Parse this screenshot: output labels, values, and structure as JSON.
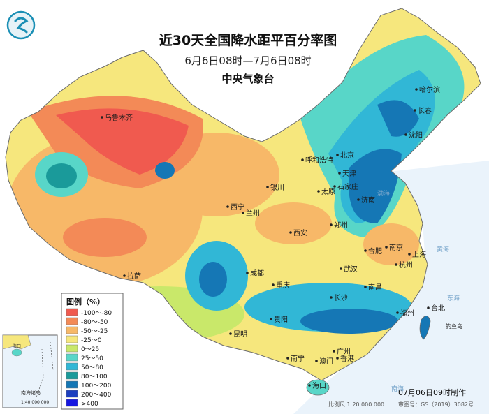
{
  "header": {
    "title": "近30天全国降水距平百分率图",
    "date_range": "6月6日08时—7月6日08时",
    "issuer": "中央气象台"
  },
  "legend": {
    "title": "图例（%）",
    "items": [
      {
        "label": "-100～-80",
        "color": "#f05a4f"
      },
      {
        "label": "-80～-50",
        "color": "#f38a57"
      },
      {
        "label": "-50～-25",
        "color": "#f7b868"
      },
      {
        "label": "-25～0",
        "color": "#f6e77d"
      },
      {
        "label": "0～25",
        "color": "#c9e86a"
      },
      {
        "label": "25～50",
        "color": "#58d6c8"
      },
      {
        "label": "50～80",
        "color": "#31b7d6"
      },
      {
        "label": "80～100",
        "color": "#1a9a9a"
      },
      {
        "label": "100～200",
        "color": "#1577b5"
      },
      {
        "label": "200～400",
        "color": "#1d3fbf"
      },
      {
        "label": ">400",
        "color": "#1717e0"
      }
    ]
  },
  "cities": [
    {
      "name": "乌鲁木齐"
    },
    {
      "name": "哈尔滨"
    },
    {
      "name": "长春"
    },
    {
      "name": "沈阳"
    },
    {
      "name": "北京"
    },
    {
      "name": "天津"
    },
    {
      "name": "呼和浩特"
    },
    {
      "name": "石家庄"
    },
    {
      "name": "太原"
    },
    {
      "name": "济南"
    },
    {
      "name": "银川"
    },
    {
      "name": "西宁"
    },
    {
      "name": "兰州"
    },
    {
      "name": "郑州"
    },
    {
      "name": "西安"
    },
    {
      "name": "合肥"
    },
    {
      "name": "南京"
    },
    {
      "name": "上海"
    },
    {
      "name": "杭州"
    },
    {
      "name": "武汉"
    },
    {
      "name": "拉萨"
    },
    {
      "name": "成都"
    },
    {
      "name": "重庆"
    },
    {
      "name": "南昌"
    },
    {
      "name": "长沙"
    },
    {
      "name": "台北"
    },
    {
      "name": "福州"
    },
    {
      "name": "贵阳"
    },
    {
      "name": "昆明"
    },
    {
      "name": "广州"
    },
    {
      "name": "南宁"
    },
    {
      "name": "澳门"
    },
    {
      "name": "香港"
    },
    {
      "name": "海口"
    }
  ],
  "sea_labels": [
    "渤海",
    "黄海",
    "东海",
    "南海"
  ],
  "island_label": "钓鱼岛",
  "inset": {
    "hainan_label": "海口",
    "islands_label": "南海诸岛",
    "scale": "1:40 000 000"
  },
  "footer": {
    "made_time": "07月06日09时制作",
    "scale": "比例尺 1:20 000 000",
    "map_number": "审图号：GS（2019）3082号"
  }
}
